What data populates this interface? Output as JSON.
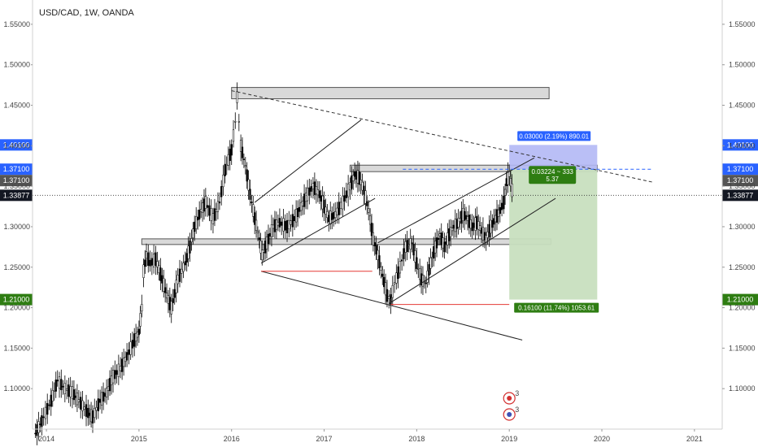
{
  "chart_data": {
    "type": "candlestick",
    "title": "USD/CAD, 1W, OANDA",
    "symbol": "USD/CAD",
    "interval": "1W",
    "source": "OANDA",
    "x_ticks": [
      "2014",
      "2015",
      "2016",
      "2017",
      "2018",
      "2019",
      "2020",
      "2021"
    ],
    "y_ticks": [
      "1.55000",
      "1.50000",
      "1.45000",
      "1.40000",
      "1.35000",
      "1.30000",
      "1.25000",
      "1.20000",
      "1.15000",
      "1.10000"
    ],
    "ylim": [
      1.05,
      1.58
    ],
    "xlim": [
      2013.85,
      2021.3
    ],
    "grid": false,
    "price_path": [
      [
        2013.88,
        1.045
      ],
      [
        2013.95,
        1.06
      ],
      [
        2014.05,
        1.085
      ],
      [
        2014.12,
        1.11
      ],
      [
        2014.2,
        1.1
      ],
      [
        2014.28,
        1.095
      ],
      [
        2014.35,
        1.085
      ],
      [
        2014.45,
        1.07
      ],
      [
        2014.5,
        1.065
      ],
      [
        2014.58,
        1.085
      ],
      [
        2014.65,
        1.095
      ],
      [
        2014.72,
        1.115
      ],
      [
        2014.8,
        1.125
      ],
      [
        2014.87,
        1.14
      ],
      [
        2014.95,
        1.16
      ],
      [
        2015.0,
        1.17
      ],
      [
        2015.03,
        1.2
      ],
      [
        2015.05,
        1.245
      ],
      [
        2015.08,
        1.265
      ],
      [
        2015.12,
        1.255
      ],
      [
        2015.18,
        1.26
      ],
      [
        2015.25,
        1.235
      ],
      [
        2015.3,
        1.215
      ],
      [
        2015.35,
        1.2
      ],
      [
        2015.42,
        1.235
      ],
      [
        2015.5,
        1.255
      ],
      [
        2015.55,
        1.275
      ],
      [
        2015.6,
        1.3
      ],
      [
        2015.67,
        1.32
      ],
      [
        2015.72,
        1.33
      ],
      [
        2015.8,
        1.31
      ],
      [
        2015.87,
        1.33
      ],
      [
        2015.93,
        1.37
      ],
      [
        2016.0,
        1.395
      ],
      [
        2016.04,
        1.43
      ],
      [
        2016.06,
        1.46
      ],
      [
        2016.1,
        1.4
      ],
      [
        2016.15,
        1.375
      ],
      [
        2016.2,
        1.34
      ],
      [
        2016.25,
        1.31
      ],
      [
        2016.3,
        1.285
      ],
      [
        2016.33,
        1.265
      ],
      [
        2016.38,
        1.28
      ],
      [
        2016.45,
        1.3
      ],
      [
        2016.52,
        1.305
      ],
      [
        2016.6,
        1.3
      ],
      [
        2016.68,
        1.31
      ],
      [
        2016.75,
        1.325
      ],
      [
        2016.82,
        1.34
      ],
      [
        2016.88,
        1.35
      ],
      [
        2016.95,
        1.34
      ],
      [
        2017.0,
        1.325
      ],
      [
        2017.05,
        1.31
      ],
      [
        2017.12,
        1.315
      ],
      [
        2017.2,
        1.33
      ],
      [
        2017.28,
        1.35
      ],
      [
        2017.33,
        1.365
      ],
      [
        2017.38,
        1.36
      ],
      [
        2017.43,
        1.345
      ],
      [
        2017.48,
        1.32
      ],
      [
        2017.53,
        1.285
      ],
      [
        2017.58,
        1.265
      ],
      [
        2017.63,
        1.24
      ],
      [
        2017.68,
        1.215
      ],
      [
        2017.72,
        1.21
      ],
      [
        2017.76,
        1.23
      ],
      [
        2017.82,
        1.25
      ],
      [
        2017.88,
        1.275
      ],
      [
        2017.95,
        1.28
      ],
      [
        2018.0,
        1.255
      ],
      [
        2018.05,
        1.235
      ],
      [
        2018.1,
        1.23
      ],
      [
        2018.15,
        1.255
      ],
      [
        2018.2,
        1.275
      ],
      [
        2018.25,
        1.29
      ],
      [
        2018.3,
        1.275
      ],
      [
        2018.35,
        1.29
      ],
      [
        2018.4,
        1.3
      ],
      [
        2018.45,
        1.305
      ],
      [
        2018.5,
        1.315
      ],
      [
        2018.55,
        1.31
      ],
      [
        2018.6,
        1.3
      ],
      [
        2018.65,
        1.305
      ],
      [
        2018.7,
        1.295
      ],
      [
        2018.75,
        1.285
      ],
      [
        2018.8,
        1.3
      ],
      [
        2018.85,
        1.31
      ],
      [
        2018.9,
        1.32
      ],
      [
        2018.94,
        1.33
      ],
      [
        2018.97,
        1.355
      ],
      [
        2019.0,
        1.365
      ],
      [
        2019.03,
        1.345
      ],
      [
        2019.05,
        1.33877
      ]
    ],
    "levels": [
      {
        "name": "last_price",
        "value": 1.33877,
        "label": "1.33877",
        "color": "#131722"
      },
      {
        "name": "upper_target",
        "value": 1.401,
        "label": "1.40100",
        "color": "#2962ff"
      },
      {
        "name": "entry",
        "value": 1.371,
        "label": "1.37100",
        "color": "#2962ff"
      },
      {
        "name": "entry_alt",
        "value": 1.371,
        "label": "1.37100",
        "color": "#555555"
      },
      {
        "name": "take_profit",
        "value": 1.21,
        "label": "1.21000",
        "color": "#2e7d12"
      }
    ],
    "zones": [
      {
        "x0": 2016.0,
        "x1": 2019.43,
        "y0": 1.458,
        "y1": 1.472,
        "color": "#d9d9d9"
      },
      {
        "x0": 2017.28,
        "x1": 2019.95,
        "y0": 1.368,
        "y1": 1.376,
        "color": "#d9d9d9"
      },
      {
        "x0": 2015.03,
        "x1": 2019.45,
        "y0": 1.278,
        "y1": 1.285,
        "color": "#d9d9d9"
      }
    ],
    "trendlines": [
      {
        "x": [
          2016.0,
          2020.55
        ],
        "y": [
          1.468,
          1.355
        ],
        "style": "dashed",
        "color": "#333333"
      },
      {
        "x": [
          2016.25,
          2017.4
        ],
        "y": [
          1.33,
          1.432
        ],
        "style": "solid",
        "color": "#222222"
      },
      {
        "x": [
          2016.32,
          2017.55
        ],
        "y": [
          1.255,
          1.335
        ],
        "style": "solid",
        "color": "#222222"
      },
      {
        "x": [
          2017.58,
          2019.27
        ],
        "y": [
          1.28,
          1.385
        ],
        "style": "solid",
        "color": "#222222"
      },
      {
        "x": [
          2017.7,
          2019.5
        ],
        "y": [
          1.205,
          1.335
        ],
        "style": "solid",
        "color": "#222222"
      },
      {
        "x": [
          2016.32,
          2019.14
        ],
        "y": [
          1.245,
          1.16
        ],
        "style": "solid",
        "color": "#222222"
      },
      {
        "x": [
          2016.32,
          2017.52
        ],
        "y": [
          1.245,
          1.245
        ],
        "style": "solid",
        "color": "#e53935"
      },
      {
        "x": [
          2017.72,
          2019.0
        ],
        "y": [
          1.204,
          1.204
        ],
        "style": "solid",
        "color": "#e53935"
      },
      {
        "x": [
          2017.85,
          2020.55
        ],
        "y": [
          1.371,
          1.371
        ],
        "style": "dashed",
        "color": "#2962ff"
      }
    ],
    "position": {
      "x0": 2019.0,
      "x1": 2019.95,
      "entry": 1.371,
      "stop": 1.401,
      "target": 1.21,
      "stop_label": "0.03000 (2.19%) 890.01",
      "target_label": "0.16100 (11.74%) 1053.61",
      "ratio_line1": "0.03224 ~ 333",
      "ratio_line2": "5.37",
      "stop_color": "#b3b8f5",
      "target_color": "#c8dfbf"
    },
    "event_markers": [
      {
        "x": 2019.0,
        "icon": "flag-ca-icon",
        "count": "3"
      },
      {
        "x": 2019.0,
        "icon": "flag-us-icon",
        "count": "3"
      }
    ]
  }
}
